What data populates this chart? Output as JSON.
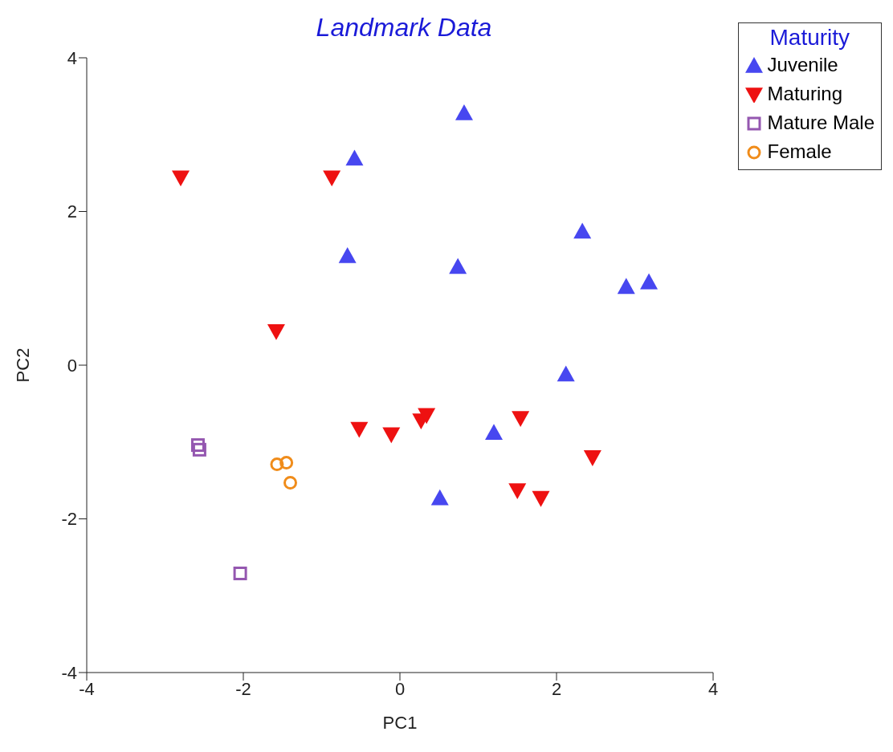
{
  "chart_data": {
    "type": "scatter",
    "title": "Landmark Data",
    "xlabel": "PC1",
    "ylabel": "PC2",
    "legend_title": "Maturity",
    "legend": "top right",
    "grid": false,
    "xlim": [
      -4,
      4
    ],
    "xticks": [
      -4,
      -2,
      0,
      2,
      4
    ],
    "ylim": [
      -4,
      4
    ],
    "yticks": [
      -4,
      -2,
      0,
      2,
      4
    ],
    "series": [
      {
        "name": "Juvenile",
        "color": "#4747f0",
        "marker": "triangle",
        "x": [
          -0.58,
          0.82,
          -0.67,
          0.74,
          2.33,
          2.89,
          3.18,
          2.12,
          1.2,
          0.51
        ],
        "values": [
          2.69,
          3.28,
          1.42,
          1.28,
          1.74,
          1.02,
          1.08,
          -0.12,
          -0.88,
          -1.73
        ]
      },
      {
        "name": "Maturing",
        "color": "#ee1111",
        "marker": "triangle-down",
        "x": [
          -2.8,
          -0.87,
          -1.58,
          -0.52,
          -0.11,
          0.27,
          0.34,
          1.54,
          1.5,
          1.8,
          2.46
        ],
        "values": [
          2.44,
          2.44,
          0.44,
          -0.83,
          -0.9,
          -0.72,
          -0.65,
          -0.69,
          -1.63,
          -1.73,
          -1.2
        ]
      },
      {
        "name": "Mature Male",
        "color": "#9457b0",
        "marker": "square",
        "x": [
          -2.58,
          -2.56,
          -2.04
        ],
        "values": [
          -1.04,
          -1.1,
          -2.71
        ]
      },
      {
        "name": "Female",
        "color": "#f08c1a",
        "marker": "circle",
        "x": [
          -1.57,
          -1.45,
          -1.4
        ],
        "values": [
          -1.29,
          -1.27,
          -1.53
        ]
      }
    ]
  }
}
